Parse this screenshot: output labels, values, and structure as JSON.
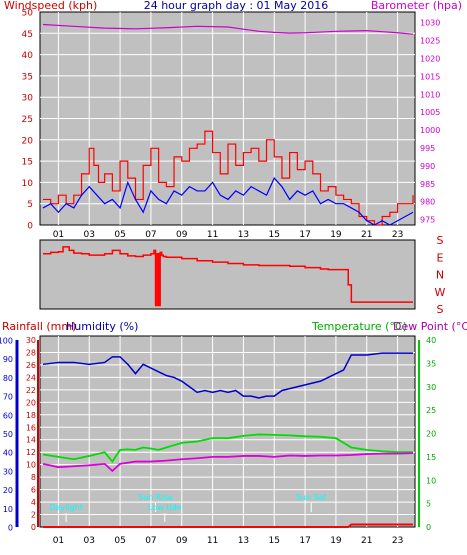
{
  "title": "24 hour graph day : 01 May 2016",
  "colors": {
    "windspeed": "#ff0000",
    "windgust": "#ff0000",
    "windavg": "#0000ff",
    "barometer": "#cc00cc",
    "direction": "#ff0000",
    "rainfall": "#ff0000",
    "humidity": "#0000cc",
    "temperature": "#00dd00",
    "dewpoint": "#dd00dd",
    "astro": "#00ffff",
    "bg": "#c0c0c0",
    "grid": "#ffffff"
  },
  "chart_data": [
    {
      "type": "line",
      "name": "wind-barometer",
      "title": "24 hour graph day : 01 May 2016",
      "left_axis_label": "Windspeed (kph)",
      "right_axis_label": "Barometer (hpa)",
      "x_ticks": [
        "01",
        "03",
        "05",
        "07",
        "09",
        "11",
        "13",
        "15",
        "17",
        "19",
        "21",
        "23"
      ],
      "left_ticks": [
        "0",
        "5",
        "10",
        "15",
        "20",
        "25",
        "30",
        "35",
        "40",
        "45",
        "50"
      ],
      "right_ticks": [
        "975",
        "980",
        "985",
        "990",
        "995",
        "1000",
        "1005",
        "1010",
        "1015",
        "1020",
        "1025",
        "1030"
      ],
      "ylim_left": [
        0,
        50
      ],
      "ylim_right": [
        973.5,
        1033
      ],
      "gust": {
        "x": [
          0,
          0.5,
          1,
          1.5,
          2,
          2.5,
          3,
          3.3,
          3.6,
          4,
          4.5,
          5,
          5.5,
          6,
          6.5,
          7,
          7.5,
          8,
          8.5,
          9,
          9.5,
          10,
          10.5,
          11,
          11.5,
          12,
          12.5,
          13,
          13.5,
          14,
          14.5,
          15,
          15.5,
          16,
          16.5,
          17,
          17.5,
          18,
          18.5,
          19,
          19.5,
          20,
          20.5,
          21,
          21.5,
          22,
          22.5,
          23,
          23.5,
          24
        ],
        "y": [
          6,
          5,
          7,
          5,
          7,
          12,
          18,
          14,
          10,
          12,
          8,
          15,
          11,
          6,
          14,
          18,
          10,
          9,
          16,
          15,
          18,
          19,
          22,
          17,
          12,
          19,
          14,
          17,
          18,
          15,
          20,
          16,
          11,
          17,
          13,
          15,
          12,
          8,
          9,
          7,
          6,
          5,
          2,
          1,
          0,
          2,
          3,
          5,
          5,
          7
        ]
      },
      "avg": {
        "x": [
          0,
          0.5,
          1,
          1.5,
          2,
          2.5,
          3,
          3.5,
          4,
          4.5,
          5,
          5.5,
          6,
          6.5,
          7,
          7.5,
          8,
          8.5,
          9,
          9.5,
          10,
          10.5,
          11,
          11.5,
          12,
          12.5,
          13,
          13.5,
          14,
          14.5,
          15,
          15.5,
          16,
          16.5,
          17,
          17.5,
          18,
          18.5,
          19,
          19.5,
          20,
          20.5,
          21,
          21.5,
          22,
          22.5,
          23,
          23.5,
          24
        ],
        "y": [
          4,
          5,
          3,
          5,
          4,
          7,
          9,
          7,
          5,
          6,
          4,
          10,
          6,
          3,
          8,
          6,
          5,
          8,
          7,
          9,
          8,
          8,
          10,
          7,
          6,
          8,
          7,
          9,
          8,
          7,
          11,
          9,
          6,
          8,
          7,
          8,
          5,
          6,
          5,
          5,
          4,
          3,
          1,
          0,
          1,
          0,
          1,
          2,
          3
        ]
      },
      "barometer": {
        "x": [
          0,
          2,
          4,
          6,
          8,
          10,
          12,
          13,
          14,
          15,
          16,
          17,
          18,
          19,
          20,
          21,
          22,
          23,
          24
        ],
        "y": [
          1029.5,
          1029,
          1028.5,
          1028.3,
          1028.6,
          1029,
          1028.8,
          1028.2,
          1027.6,
          1027.3,
          1027.1,
          1027.2,
          1027.4,
          1027.6,
          1027.7,
          1027.8,
          1027.5,
          1027.2,
          1026.8
        ]
      }
    },
    {
      "type": "line",
      "name": "wind-direction",
      "direction_labels": [
        "S",
        "E",
        "N",
        "W",
        "S"
      ],
      "direction": {
        "x": [
          0,
          0.5,
          1,
          1.3,
          1.7,
          2,
          2.5,
          3,
          3.5,
          4,
          4.5,
          5,
          5.5,
          6,
          6.5,
          7,
          7.2,
          7.3,
          7.4,
          7.5,
          7.6,
          7.7,
          7.8,
          8,
          9,
          10,
          11,
          12,
          13,
          14,
          15,
          16,
          17,
          18,
          18.5,
          19,
          19.5,
          19.8,
          20,
          21,
          22,
          23,
          24
        ],
        "y": [
          80,
          82,
          83,
          90,
          85,
          81,
          80,
          78,
          78,
          80,
          85,
          80,
          77,
          76,
          78,
          80,
          85,
          5,
          80,
          5,
          82,
          78,
          76,
          75,
          73,
          70,
          68,
          66,
          64,
          63,
          63,
          62,
          60,
          58,
          57,
          57,
          57,
          35,
          10,
          10,
          10,
          10,
          10
        ]
      }
    },
    {
      "type": "line",
      "name": "humidity-temperature",
      "left_axis_label_1": "Rainfall (mm)",
      "left_axis_label_2": "Humidity (%)",
      "right_axis_label_1": "Temperature (°C)",
      "right_axis_label_2": "Dew Point (°C)",
      "x_ticks": [
        "01",
        "03",
        "05",
        "07",
        "09",
        "11",
        "13",
        "15",
        "17",
        "19",
        "21",
        "23"
      ],
      "humidity_ticks": [
        "0",
        "10",
        "20",
        "30",
        "40",
        "50",
        "60",
        "70",
        "80",
        "90",
        "100"
      ],
      "rain_ticks": [
        "0",
        "2",
        "4",
        "6",
        "8",
        "10",
        "12",
        "14",
        "16",
        "18",
        "20",
        "22",
        "24",
        "26",
        "28",
        "30"
      ],
      "temp_ticks": [
        "0",
        "5",
        "10",
        "15",
        "20",
        "25",
        "30",
        "35",
        "40"
      ],
      "humidity": {
        "x": [
          0,
          1,
          2,
          3,
          4,
          4.5,
          5,
          5.5,
          6,
          6.5,
          7,
          7.5,
          8,
          8.5,
          9,
          9.5,
          10,
          10.5,
          11,
          11.5,
          12,
          12.5,
          13,
          13.5,
          14,
          14.5,
          15,
          15.5,
          16,
          16.5,
          17,
          17.5,
          18,
          18.5,
          19,
          19.5,
          20,
          21,
          22,
          23,
          24
        ],
        "y": [
          87,
          88,
          88,
          87,
          88,
          91,
          91,
          87,
          82,
          87,
          85,
          83,
          81,
          80,
          78,
          75,
          72,
          73,
          72,
          73,
          72,
          73,
          70,
          70,
          69,
          70,
          70,
          73,
          74,
          75,
          76,
          77,
          78,
          80,
          82,
          84,
          92,
          92,
          93,
          93,
          93
        ]
      },
      "temperature": {
        "x": [
          0,
          1,
          2,
          3,
          4,
          4.5,
          5,
          5.5,
          6,
          6.5,
          7,
          7.5,
          8,
          8.5,
          9,
          10,
          11,
          12,
          13,
          14,
          15,
          16,
          17,
          18,
          19,
          20,
          21,
          22,
          23,
          24
        ],
        "y": [
          15.5,
          15,
          14.5,
          15.2,
          16,
          14,
          16.5,
          16.6,
          16.5,
          17,
          16.8,
          16.5,
          17,
          17.5,
          18,
          18.3,
          19,
          19,
          19.5,
          19.8,
          19.7,
          19.6,
          19.4,
          19.3,
          19,
          17,
          16.5,
          16.2,
          16,
          16
        ]
      },
      "dewpoint": {
        "x": [
          0,
          1,
          2,
          3,
          4,
          4.5,
          5,
          6,
          7,
          8,
          9,
          10,
          11,
          12,
          13,
          14,
          15,
          16,
          17,
          18,
          19,
          20,
          21,
          22,
          23,
          24
        ],
        "y": [
          13.5,
          12.8,
          13,
          13.2,
          13.5,
          12,
          13.5,
          14,
          14,
          14.2,
          14.5,
          14.7,
          15,
          15,
          15.2,
          15.2,
          15,
          15.3,
          15.2,
          15.3,
          15.3,
          15.4,
          15.6,
          15.7,
          15.7,
          15.8
        ]
      },
      "rainfall": {
        "x": [
          0,
          19.8,
          20,
          24
        ],
        "y": [
          0,
          0,
          0.4,
          0.4
        ]
      },
      "ylim_humidity": [
        0,
        100
      ],
      "ylim_rain": [
        0,
        30
      ],
      "ylim_temp": [
        0,
        40
      ],
      "annotations": [
        {
          "label": "Daylight",
          "x": 1.5,
          "at": "low"
        },
        {
          "label": "Sun Rise",
          "x": 7.3,
          "at": "mid"
        },
        {
          "label": "Low tide",
          "x": 7.9,
          "at": "low"
        },
        {
          "label": "Sun Set",
          "x": 17.4,
          "at": "mid"
        }
      ]
    }
  ]
}
